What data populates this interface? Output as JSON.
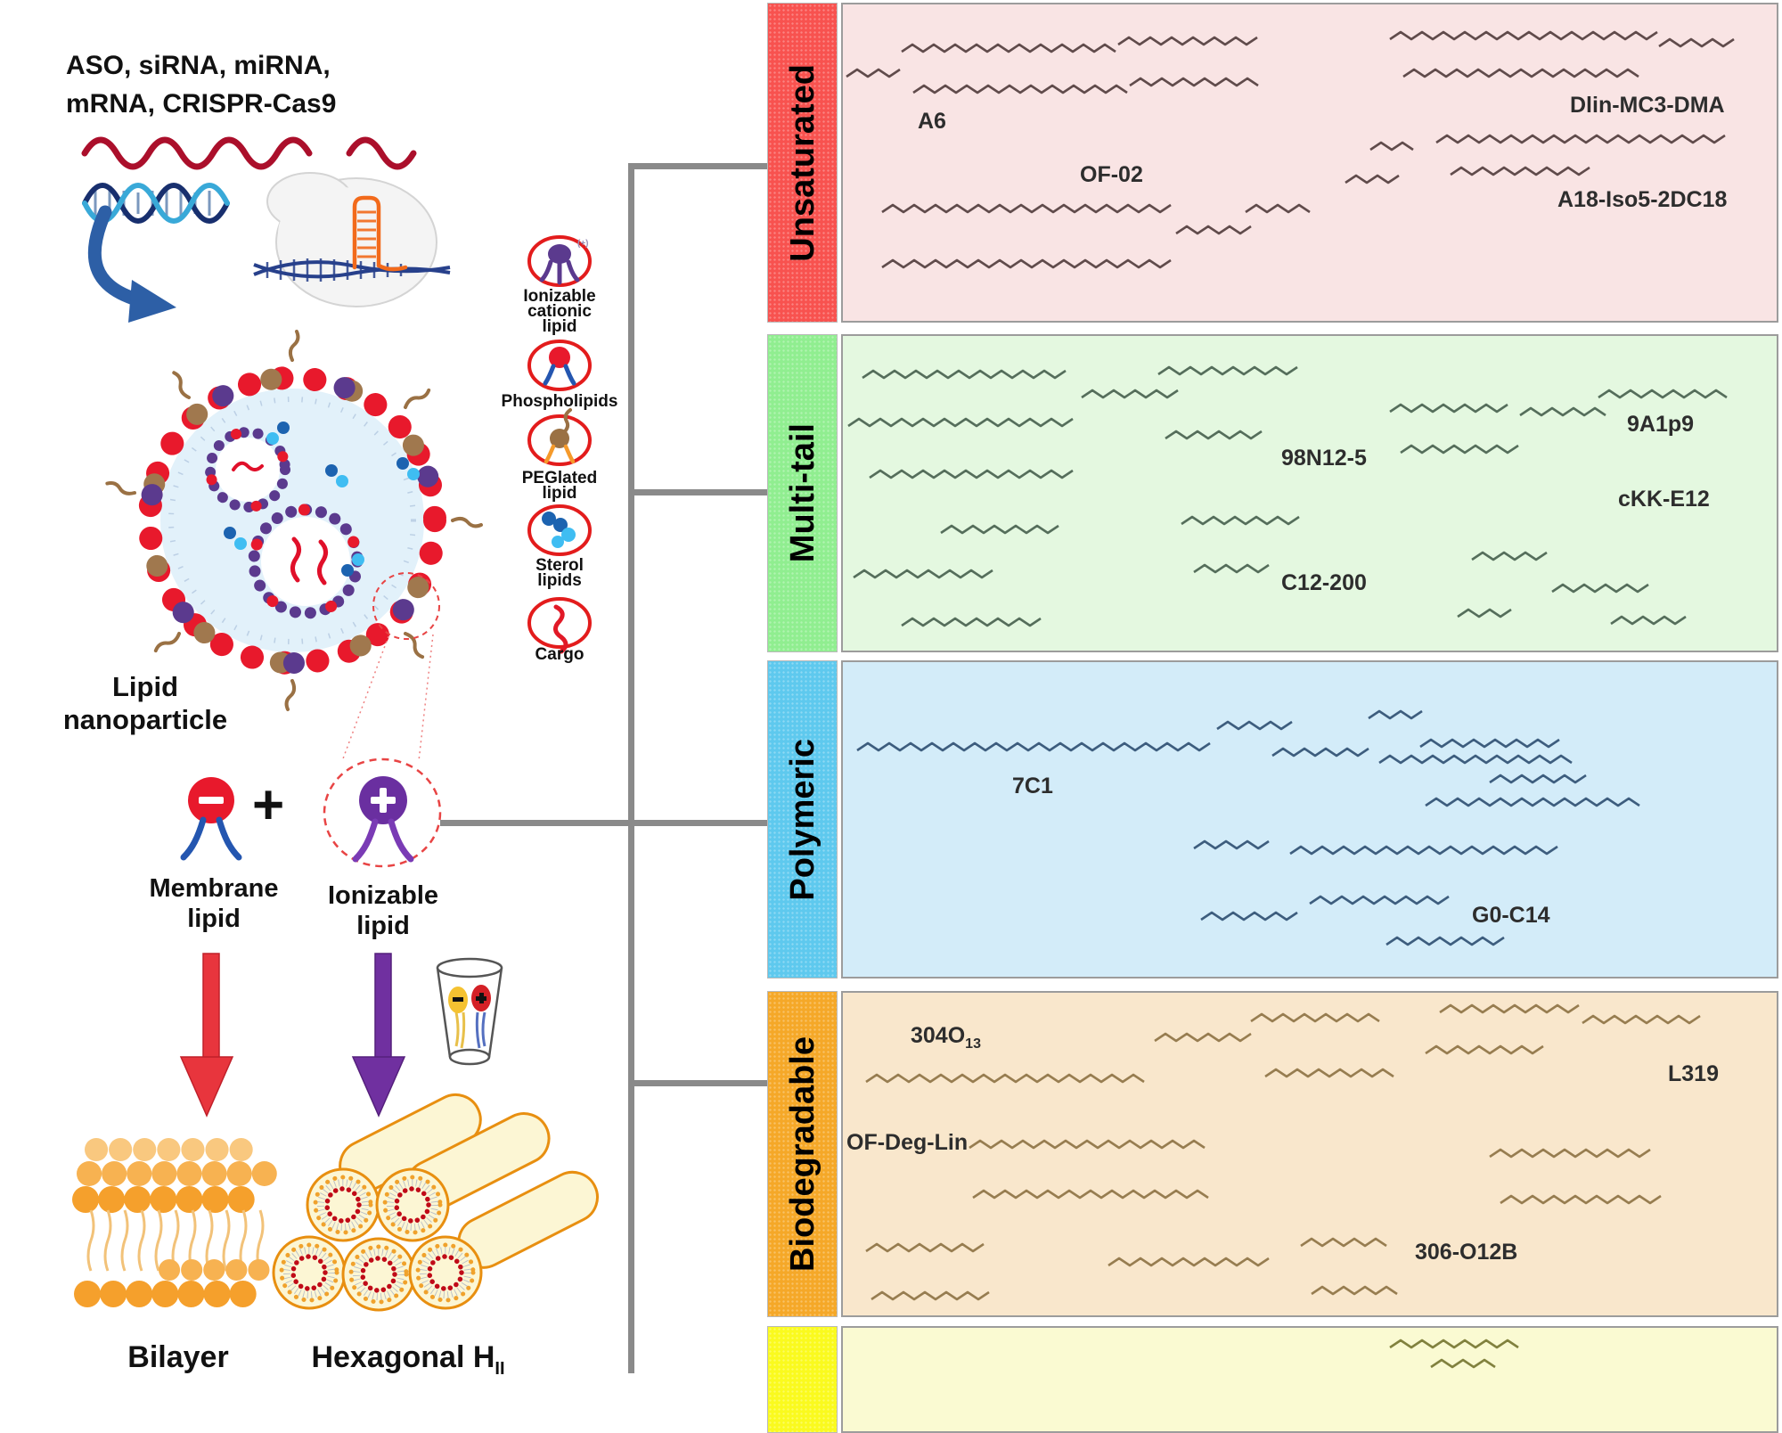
{
  "left": {
    "heading_line1": "ASO, siRNA, miRNA,",
    "heading_line2": "mRNA, CRISPR-Cas9",
    "nanoparticle_line1": "Lipid",
    "nanoparticle_line2": "nanoparticle",
    "plus": "+",
    "membrane_line1": "Membrane",
    "membrane_line2": "lipid",
    "ionizable_line1": "Ionizable",
    "ionizable_line2": "lipid",
    "ionizable_charge_mark": "(+)",
    "bilayer_label": "Bilayer",
    "hexagonal_label": "Hexagonal H",
    "hexagonal_sub": "II",
    "legend": [
      {
        "id": "ionizable-cationic-lipid",
        "l1": "Ionizable",
        "l2": "cationic",
        "l3": "lipid"
      },
      {
        "id": "phospholipids",
        "l1": "Phospholipids"
      },
      {
        "id": "peglated-lipid",
        "l1": "PEGlated",
        "l2": "lipid"
      },
      {
        "id": "sterol-lipids",
        "l1": "Sterol",
        "l2": "lipids"
      },
      {
        "id": "cargo",
        "l1": "Cargo"
      }
    ]
  },
  "panels": [
    {
      "tab": "Unsaturated",
      "tab_color": "#f8524f",
      "panel_color": "#f9e4e4",
      "compounds": [
        {
          "label": "A6"
        },
        {
          "label": "OF-02"
        },
        {
          "label": "Dlin-MC3-DMA"
        },
        {
          "label": "A18-Iso5-2DC18"
        }
      ]
    },
    {
      "tab": "Multi-tail",
      "tab_color": "#90ee90",
      "panel_color": "#e4f8e0",
      "compounds": [
        {
          "label": "98N12-5"
        },
        {
          "label": "9A1p9"
        },
        {
          "label": "cKK-E12"
        },
        {
          "label": "C12-200"
        }
      ]
    },
    {
      "tab": "Polymeric",
      "tab_color": "#5ec9ee",
      "panel_color": "#d3ecf9",
      "compounds": [
        {
          "label": "7C1"
        },
        {
          "label": "G0-C14"
        }
      ]
    },
    {
      "tab": "Biodegradable",
      "tab_color": "#f5a828",
      "panel_color": "#f9e7cc",
      "compounds": [
        {
          "label": "304O",
          "sub": "13"
        },
        {
          "label": "OF-Deg-Lin"
        },
        {
          "label": "L319"
        },
        {
          "label": "306-O12B"
        }
      ]
    },
    {
      "tab": "",
      "tab_color": "#fafa1e",
      "panel_color": "#fafad2",
      "compounds": []
    }
  ],
  "colors": {
    "connector_gray": "#8a8a8a",
    "membrane_head_red": "#e8192c",
    "ionizable_head_purple": "#6a2fa0",
    "peg_brown": "#9a7144",
    "sterol_blue": "#1c63b0",
    "sterol_light_blue": "#3fbdf2",
    "cargo_red": "#e11927",
    "arrow_red": "#e8353d",
    "arrow_purple": "#7030a0",
    "rna_crimson": "#ab0f2b",
    "bilayer_orange": "#f5a02c",
    "hexagonal_rim_orange": "#e88f10"
  }
}
